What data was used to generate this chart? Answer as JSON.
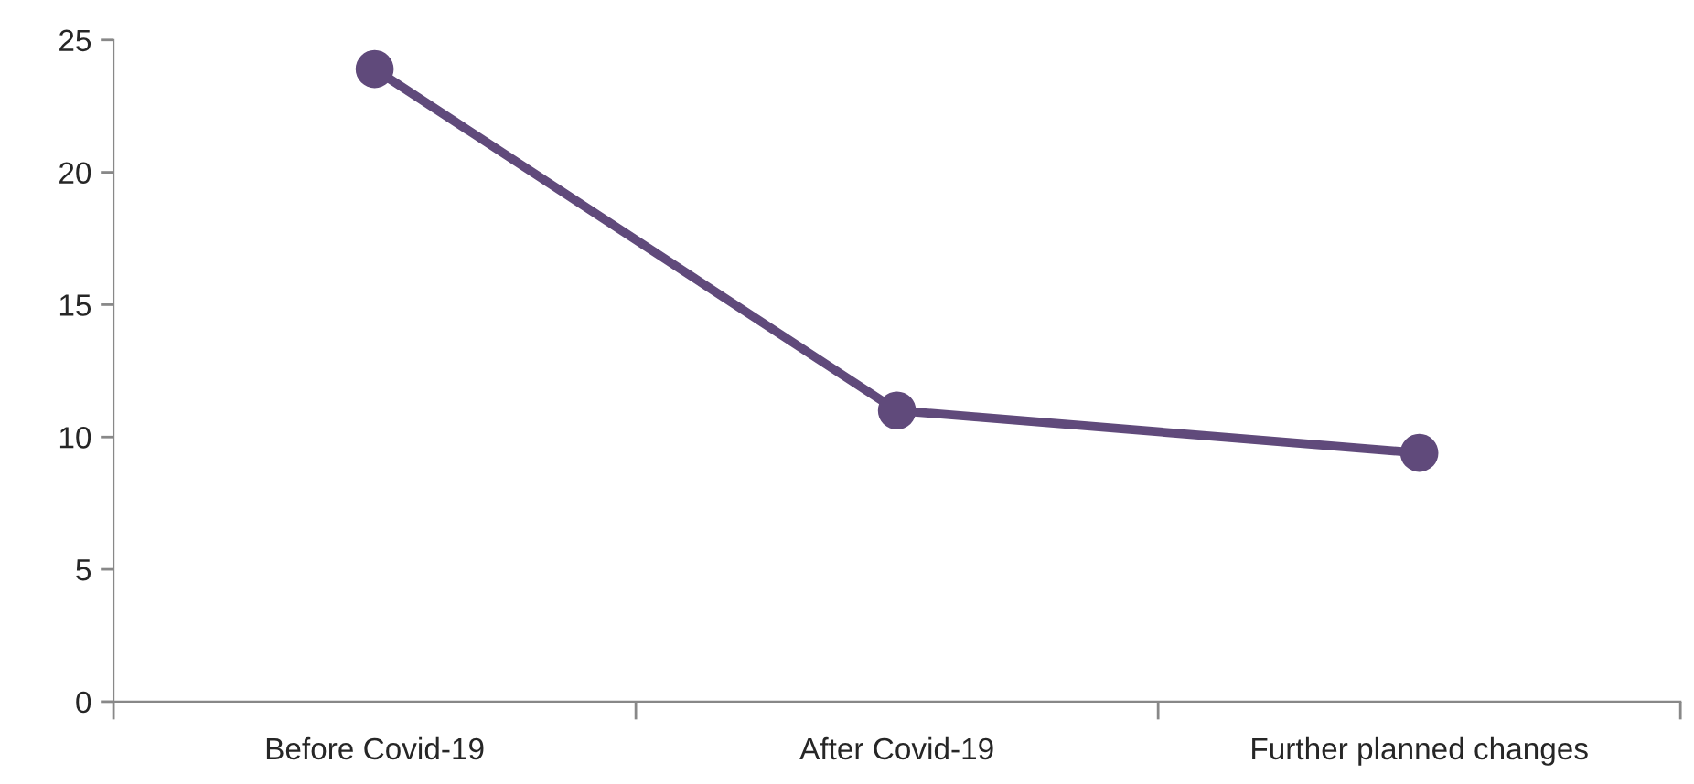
{
  "chart_data": {
    "type": "line",
    "categories": [
      "Before Covid-19",
      "After Covid-19",
      "Further planned changes"
    ],
    "series": [
      {
        "color": "#604a7b",
        "values": [
          23.9,
          11.0,
          9.4
        ]
      }
    ],
    "ylim": [
      0,
      25
    ],
    "yticks": [
      0,
      5,
      10,
      15,
      20,
      25
    ],
    "grid": false,
    "marker": "circle",
    "line_style": "solid"
  }
}
